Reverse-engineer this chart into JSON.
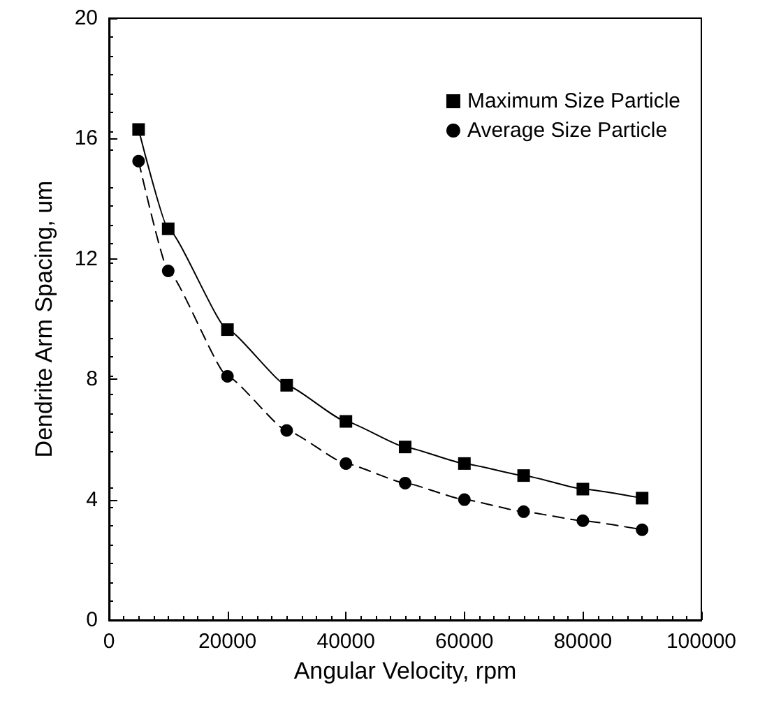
{
  "chart_data": {
    "type": "line",
    "xlabel": "Angular Velocity, rpm",
    "ylabel": "Dendrite Arm Spacing, um",
    "x": [
      5000,
      10000,
      20000,
      30000,
      40000,
      50000,
      60000,
      70000,
      80000,
      90000
    ],
    "series": [
      {
        "name": "Maximum Size Particle",
        "color": "#000000",
        "marker": "square",
        "line_style": "solid",
        "values": [
          16.3,
          13.0,
          9.65,
          7.8,
          6.6,
          5.75,
          5.2,
          4.8,
          4.35,
          4.05
        ]
      },
      {
        "name": "Average Size Particle",
        "color": "#000000",
        "marker": "circle",
        "line_style": "dashed",
        "values": [
          15.25,
          11.6,
          8.1,
          6.3,
          5.2,
          4.55,
          4.0,
          3.6,
          3.3,
          3.0
        ]
      }
    ],
    "xlim": [
      0,
      100000
    ],
    "xticks": [
      0,
      20000,
      40000,
      60000,
      80000,
      100000
    ],
    "ylim": [
      0,
      20
    ],
    "yticks": [
      0,
      4,
      8,
      12,
      16,
      20
    ],
    "grid": false,
    "legend": "top right"
  }
}
